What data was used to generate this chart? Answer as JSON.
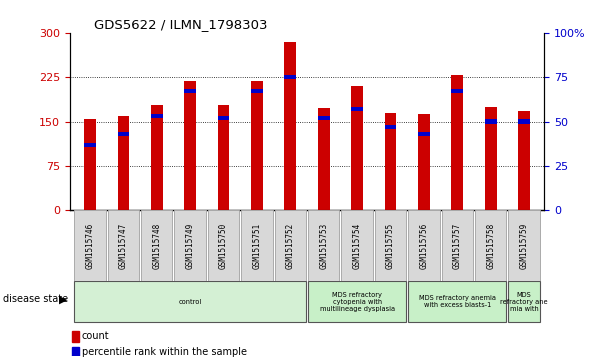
{
  "title": "GDS5622 / ILMN_1798303",
  "samples": [
    "GSM1515746",
    "GSM1515747",
    "GSM1515748",
    "GSM1515749",
    "GSM1515750",
    "GSM1515751",
    "GSM1515752",
    "GSM1515753",
    "GSM1515754",
    "GSM1515755",
    "GSM1515756",
    "GSM1515757",
    "GSM1515758",
    "GSM1515759"
  ],
  "counts": [
    155,
    160,
    178,
    218,
    178,
    218,
    285,
    172,
    210,
    165,
    162,
    228,
    175,
    168
  ],
  "percentile_ranks": [
    37,
    43,
    53,
    67,
    52,
    67,
    75,
    52,
    57,
    47,
    43,
    67,
    50,
    50
  ],
  "ylim_left": [
    0,
    300
  ],
  "ylim_right": [
    0,
    100
  ],
  "yticks_left": [
    0,
    75,
    150,
    225,
    300
  ],
  "yticks_right": [
    0,
    25,
    50,
    75,
    100
  ],
  "disease_groups": [
    {
      "label": "control",
      "start": 0,
      "end": 7,
      "color": "#d4f0d4"
    },
    {
      "label": "MDS refractory\ncytopenia with\nmultilineage dysplasia",
      "start": 7,
      "end": 10,
      "color": "#c8f0c8"
    },
    {
      "label": "MDS refractory anemia\nwith excess blasts-1",
      "start": 10,
      "end": 13,
      "color": "#c8f0c8"
    },
    {
      "label": "MDS\nrefractory ane\nmia with",
      "start": 13,
      "end": 14,
      "color": "#c8f0c8"
    }
  ],
  "bar_color": "#cc0000",
  "percentile_color": "#0000cc",
  "grid_color": "#000000",
  "tick_color_left": "#cc0000",
  "tick_color_right": "#0000cc",
  "sample_bg": "#d8d8d8",
  "plot_bg": "#ffffff",
  "bar_width": 0.35,
  "disease_state_label": "disease state"
}
